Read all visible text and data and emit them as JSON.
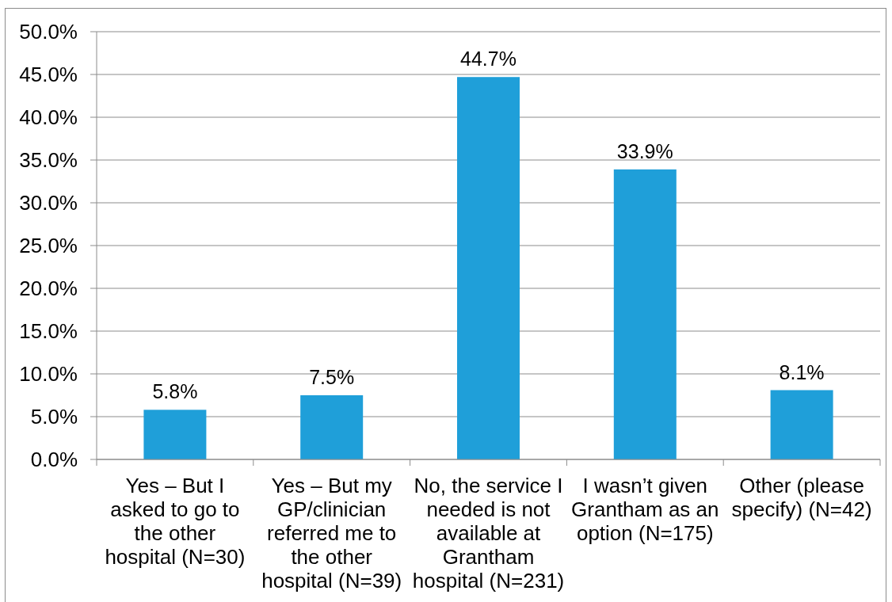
{
  "chart_data": {
    "type": "bar",
    "categories": [
      "Yes – But I asked to go to the other hospital (N=30)",
      "Yes – But my GP/clinician referred me to the other hospital (N=39)",
      "No, the service I needed is not available at Grantham hospital (N=231)",
      "I wasn’t given Grantham as an option (N=175)",
      "Other (please specify) (N=42)"
    ],
    "values": [
      5.8,
      7.5,
      44.7,
      33.9,
      8.1
    ],
    "value_labels": [
      "5.8%",
      "7.5%",
      "44.7%",
      "33.9%",
      "8.1%"
    ],
    "color": "#1f9fd9",
    "ylim": [
      0,
      50
    ],
    "yticks": [
      {
        "value": 0,
        "label": "0.0%"
      },
      {
        "value": 5,
        "label": "5.0%"
      },
      {
        "value": 10,
        "label": "10.0%"
      },
      {
        "value": 15,
        "label": "15.0%"
      },
      {
        "value": 20,
        "label": "20.0%"
      },
      {
        "value": 25,
        "label": "25.0%"
      },
      {
        "value": 30,
        "label": "30.0%"
      },
      {
        "value": 35,
        "label": "35.0%"
      },
      {
        "value": 40,
        "label": "40.0%"
      },
      {
        "value": 45,
        "label": "45.0%"
      },
      {
        "value": 50,
        "label": "50.0%"
      }
    ],
    "grid": "y"
  }
}
